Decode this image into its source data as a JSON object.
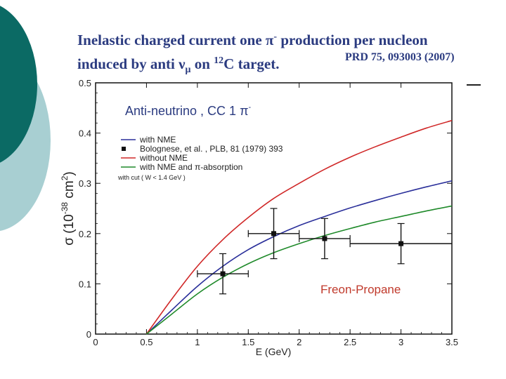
{
  "title": {
    "line1_prefix": "Inelastic charged current one ",
    "line1_pi": "π",
    "line1_sup": "-",
    "line1_suffix": " production  per nucleon",
    "line2_prefix": "induced by anti ",
    "line2_nu": "ν",
    "line2_mu": "μ",
    "line2_mid": " on ",
    "line2_sup": "12",
    "line2_suffix": "C target."
  },
  "reference": "PRD 75, 093003 (2007)",
  "colors": {
    "title": "#2b3b80",
    "with_nme": "#2a2f9a",
    "without_nme": "#d02828",
    "absorption": "#1f8a2a",
    "data": "#111111",
    "freon_label": "#c0392b",
    "deco_dark": "#0b6a64",
    "deco_light": "#a8cfd2"
  },
  "chart_data": {
    "type": "line",
    "subtitle": "Anti-neutrino ,  CC 1 π",
    "subtitle_sup": "-",
    "xlabel": "E (GeV)",
    "ylabel_prefix": "σ (10",
    "ylabel_sup": "-38",
    "ylabel_suffix": " cm",
    "ylabel_sup2": "2",
    "ylabel_end": ")",
    "xlim": [
      0,
      3.5
    ],
    "ylim": [
      0,
      0.5
    ],
    "xticks": [
      "0",
      "0.5",
      "1",
      "1.5",
      "2",
      "2.5",
      "3",
      "3.5"
    ],
    "xtick_values": [
      0,
      0.5,
      1,
      1.5,
      2,
      2.5,
      3,
      3.5
    ],
    "yticks": [
      "0",
      "0.1",
      "0.2",
      "0.3",
      "0.4",
      "0.5"
    ],
    "ytick_values": [
      0,
      0.1,
      0.2,
      0.3,
      0.4,
      0.5
    ],
    "grid": false,
    "legend_position": "upper-left",
    "cut_note": "with cut ( W < 1.4 GeV )",
    "annotation": "Freon-Propane",
    "series": [
      {
        "name": "with NME",
        "color_key": "with_nme",
        "x": [
          0.5,
          0.75,
          1.0,
          1.25,
          1.5,
          1.75,
          2.0,
          2.25,
          2.5,
          2.75,
          3.0,
          3.25,
          3.5
        ],
        "y": [
          0.0,
          0.048,
          0.095,
          0.135,
          0.168,
          0.194,
          0.216,
          0.234,
          0.251,
          0.266,
          0.28,
          0.293,
          0.305
        ]
      },
      {
        "name": "without NME",
        "color_key": "without_nme",
        "x": [
          0.5,
          0.75,
          1.0,
          1.25,
          1.5,
          1.75,
          2.0,
          2.25,
          2.5,
          2.75,
          3.0,
          3.25,
          3.5
        ],
        "y": [
          0.0,
          0.07,
          0.135,
          0.188,
          0.232,
          0.27,
          0.3,
          0.328,
          0.352,
          0.373,
          0.392,
          0.41,
          0.425
        ]
      },
      {
        "name": "with NME and π-absorption",
        "color_key": "absorption",
        "x": [
          0.5,
          0.75,
          1.0,
          1.25,
          1.5,
          1.75,
          2.0,
          2.25,
          2.5,
          2.75,
          3.0,
          3.25,
          3.5
        ],
        "y": [
          0.0,
          0.04,
          0.08,
          0.113,
          0.14,
          0.162,
          0.18,
          0.196,
          0.21,
          0.223,
          0.234,
          0.245,
          0.255
        ]
      }
    ],
    "data_points": {
      "name": "Bolognese, et al. , PLB, 81 (1979) 393",
      "x": [
        1.25,
        1.75,
        2.25,
        3.0
      ],
      "y": [
        0.12,
        0.2,
        0.19,
        0.18
      ],
      "x_low": [
        1.0,
        1.5,
        2.0,
        2.5
      ],
      "x_high": [
        1.5,
        2.0,
        2.5,
        3.5
      ],
      "y_low": [
        0.08,
        0.15,
        0.15,
        0.14
      ],
      "y_high": [
        0.16,
        0.25,
        0.23,
        0.22
      ]
    }
  }
}
